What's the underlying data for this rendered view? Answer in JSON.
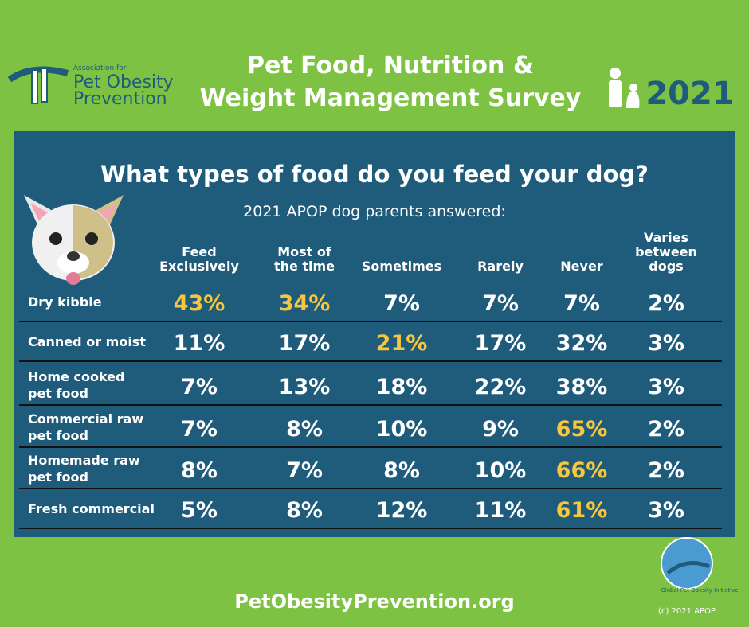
{
  "header": {
    "logo_lines": [
      "Association for",
      "Pet Obesity",
      "Prevention"
    ],
    "title_lines": [
      "Pet Food, Nutrition &",
      "Weight Management Survey"
    ],
    "year": "2021"
  },
  "panel": {
    "question": "What types of food do you feed your dog?",
    "subtitle": "2021 APOP dog parents answered:"
  },
  "table": {
    "columns": [
      [
        "Feed",
        "Exclusively"
      ],
      [
        "Most of",
        "the time"
      ],
      [
        "Sometimes"
      ],
      [
        "Rarely"
      ],
      [
        "Never"
      ],
      [
        "Varies",
        "between",
        "dogs"
      ]
    ],
    "rows": [
      {
        "label": [
          "Dry kibble"
        ],
        "cells": [
          "43%",
          "34%",
          "7%",
          "7%",
          "7%",
          "2%"
        ],
        "colors": [
          "#f7c63d",
          "#f7c63d",
          "#ffffff",
          "#ffffff",
          "#ffffff",
          "#ffffff"
        ]
      },
      {
        "label": [
          "Canned or moist"
        ],
        "cells": [
          "11%",
          "17%",
          "21%",
          "17%",
          "32%",
          "3%"
        ],
        "colors": [
          "#ffffff",
          "#ffffff",
          "#f7c63d",
          "#ffffff",
          "#ffffff",
          "#ffffff"
        ]
      },
      {
        "label": [
          "Home cooked",
          "pet food"
        ],
        "cells": [
          "7%",
          "13%",
          "18%",
          "22%",
          "38%",
          "3%"
        ],
        "colors": [
          "#ffffff",
          "#ffffff",
          "#ffffff",
          "#ffffff",
          "#ffffff",
          "#ffffff"
        ]
      },
      {
        "label": [
          "Commercial raw",
          "pet food"
        ],
        "cells": [
          "7%",
          "8%",
          "10%",
          "9%",
          "65%",
          "2%"
        ],
        "colors": [
          "#ffffff",
          "#ffffff",
          "#ffffff",
          "#ffffff",
          "#f7c63d",
          "#ffffff"
        ]
      },
      {
        "label": [
          "Homemade raw",
          "pet food"
        ],
        "cells": [
          "8%",
          "7%",
          "8%",
          "10%",
          "66%",
          "2%"
        ],
        "colors": [
          "#ffffff",
          "#ffffff",
          "#ffffff",
          "#ffffff",
          "#f7c63d",
          "#ffffff"
        ]
      },
      {
        "label": [
          "Fresh commercial"
        ],
        "cells": [
          "5%",
          "8%",
          "12%",
          "11%",
          "61%",
          "3%"
        ],
        "colors": [
          "#ffffff",
          "#ffffff",
          "#ffffff",
          "#ffffff",
          "#f7c63d",
          "#ffffff"
        ]
      }
    ]
  },
  "footer": {
    "url": "PetObesityPrevention.org",
    "badge_text": "Global Pet Obesity Initiative",
    "copyright": "(c) 2021 APOP"
  }
}
